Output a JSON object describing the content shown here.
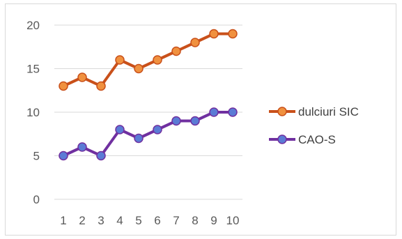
{
  "chart_data": {
    "type": "line",
    "title": "",
    "xlabel": "",
    "ylabel": "",
    "x": [
      1,
      2,
      3,
      4,
      5,
      6,
      7,
      8,
      9,
      10
    ],
    "x_tick_labels": [
      "1",
      "2",
      "3",
      "4",
      "5",
      "6",
      "7",
      "8",
      "9",
      "10"
    ],
    "ylim": [
      0,
      20
    ],
    "y_ticks": [
      0,
      5,
      10,
      15,
      20
    ],
    "y_tick_labels": [
      "0",
      "5",
      "10",
      "15",
      "20"
    ],
    "grid": true,
    "legend": "right",
    "series": [
      {
        "name": "dulciuri SIC",
        "values": [
          13,
          14,
          13,
          16,
          15,
          16,
          17,
          18,
          19,
          19
        ],
        "color": "#c9501a",
        "marker_color": "#f0913f"
      },
      {
        "name": "CAO-S",
        "values": [
          5,
          6,
          5,
          8,
          7,
          8,
          9,
          9,
          10,
          10
        ],
        "color": "#7030a0",
        "marker_color": "#5b7bd5"
      }
    ]
  }
}
